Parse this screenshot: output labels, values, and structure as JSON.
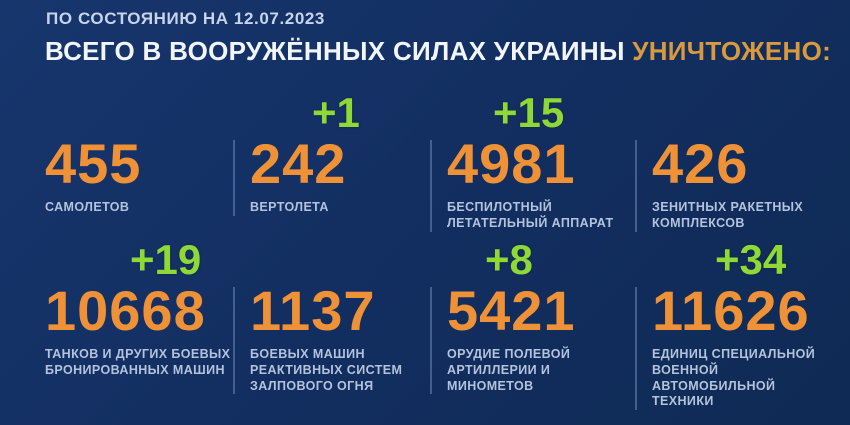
{
  "header": {
    "date_line": "ПО СОСТОЯНИЮ НА 12.07.2023",
    "title_main": "ВСЕГО В ВООРУЖЁННЫХ СИЛАХ УКРАИНЫ ",
    "title_accent": "УНИЧТОЖЕНО:"
  },
  "colors": {
    "background": "#132f62",
    "number_orange": "#ef9136",
    "title_accent_orange": "#d8993f",
    "increment_green": "#8ed936",
    "label_blue": "#b4c3dc",
    "divider_blue": "#51719f"
  },
  "stats": [
    {
      "value": "455",
      "increment": "",
      "label": "САМОЛЕТОВ"
    },
    {
      "value": "242",
      "increment": "+1",
      "label": "ВЕРТОЛЕТА"
    },
    {
      "value": "4981",
      "increment": "+15",
      "label": "БЕСПИЛОТНЫЙ\nЛЕТАТЕЛЬНЫЙ АППАРАТ"
    },
    {
      "value": "426",
      "increment": "",
      "label": "ЗЕНИТНЫХ РАКЕТНЫХ\nКОМПЛЕКСОВ"
    },
    {
      "value": "10668",
      "increment": "+19",
      "label": "ТАНКОВ И ДРУГИХ БОЕВЫХ\nБРОНИРОВАННЫХ МАШИН"
    },
    {
      "value": "1137",
      "increment": "",
      "label": "БОЕВЫХ МАШИН\nРЕАКТИВНЫХ СИСТЕМ\nЗАЛПОВОГО ОГНЯ"
    },
    {
      "value": "5421",
      "increment": "+8",
      "label": "ОРУДИЕ ПОЛЕВОЙ\nАРТИЛЛЕРИИ И МИНОМЕТОВ"
    },
    {
      "value": "11626",
      "increment": "+34",
      "label": "ЕДИНИЦ СПЕЦИАЛЬНОЙ\nВОЕННОЙ АВТОМОБИЛЬНОЙ\nТЕХНИКИ"
    }
  ],
  "chart_data": {
    "type": "table",
    "title": "ВСЕГО В ВООРУЖЁННЫХ СИЛАХ УКРАИНЫ УНИЧТОЖЕНО:",
    "subtitle": "ПО СОСТОЯНИЮ НА 12.07.2023",
    "categories": [
      "самолетов",
      "вертолета",
      "беспилотный летательный аппарат",
      "зенитных ракетных комплексов",
      "танков и других боевых бронированных машин",
      "боевых машин реактивных систем залпового огня",
      "орудие полевой артиллерии и минометов",
      "единиц специальной военной автомобильной техники"
    ],
    "values": [
      455,
      242,
      4981,
      426,
      10668,
      1137,
      5421,
      11626
    ],
    "daily_increments": [
      null,
      1,
      15,
      null,
      19,
      null,
      8,
      34
    ],
    "layout": "2 rows x 4 columns grid, increments shown in green above values"
  }
}
